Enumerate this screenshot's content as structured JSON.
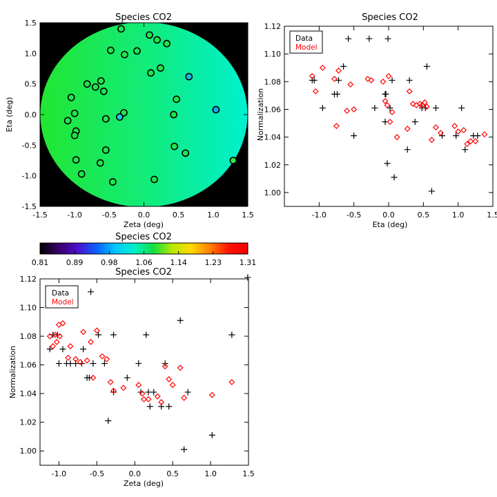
{
  "chart_data": [
    {
      "type": "scatter",
      "id": "map",
      "title": "Species CO2",
      "xlabel": "Zeta (deg)",
      "ylabel": "Eta (deg)",
      "xlim": [
        -1.5,
        1.5
      ],
      "ylim": [
        -1.5,
        1.5
      ],
      "xticks": [
        "-1.5",
        "-1.0",
        "-0.5",
        "0.0",
        "0.5",
        "1.0",
        "1.5"
      ],
      "yticks": [
        "-1.5",
        "-1.0",
        "-0.5",
        "0.0",
        "0.5",
        "1.0",
        "1.5"
      ],
      "background_colors": {
        "outside": "#000000",
        "field_left": "#22e632",
        "field_right": "#00f0d0"
      },
      "points": [
        {
          "x": -0.33,
          "y": 1.4
        },
        {
          "x": 0.08,
          "y": 1.3
        },
        {
          "x": 0.19,
          "y": 1.22
        },
        {
          "x": 0.33,
          "y": 1.16
        },
        {
          "x": -0.48,
          "y": 1.05
        },
        {
          "x": -0.28,
          "y": 0.98
        },
        {
          "x": -0.1,
          "y": 1.04
        },
        {
          "x": -0.62,
          "y": 0.55
        },
        {
          "x": -0.7,
          "y": 0.45
        },
        {
          "x": -0.82,
          "y": 0.5
        },
        {
          "x": -0.58,
          "y": 0.38
        },
        {
          "x": 0.1,
          "y": 0.68
        },
        {
          "x": 0.24,
          "y": 0.76
        },
        {
          "x": 0.65,
          "y": 0.62
        },
        {
          "x": -1.05,
          "y": 0.28
        },
        {
          "x": 0.47,
          "y": 0.25
        },
        {
          "x": -1.0,
          "y": 0.02
        },
        {
          "x": -1.1,
          "y": -0.1
        },
        {
          "x": -0.29,
          "y": 0.03
        },
        {
          "x": -0.35,
          "y": -0.04
        },
        {
          "x": -0.55,
          "y": -0.07
        },
        {
          "x": 0.43,
          "y": 0.0
        },
        {
          "x": 1.04,
          "y": 0.08
        },
        {
          "x": -0.98,
          "y": -0.27
        },
        {
          "x": -1.0,
          "y": -0.34
        },
        {
          "x": 0.44,
          "y": -0.52
        },
        {
          "x": -0.55,
          "y": -0.58
        },
        {
          "x": 0.6,
          "y": -0.63
        },
        {
          "x": -0.98,
          "y": -0.74
        },
        {
          "x": -0.63,
          "y": -0.79
        },
        {
          "x": 1.29,
          "y": -0.75
        },
        {
          "x": -0.9,
          "y": -0.97
        },
        {
          "x": 0.15,
          "y": -1.06
        },
        {
          "x": -0.45,
          "y": -1.1
        }
      ],
      "point_colors": {
        "default": "#1ee64e",
        "x_0.65_y_0.62": "#16b8e8",
        "x_1.04_y_0.08": "#1aa8f0",
        "x_-0.35_y_-0.04": "#18c8e0",
        "x_1.29_y_-0.75": "#30e840"
      }
    },
    {
      "type": "colorbar",
      "id": "colorbar",
      "title": "Species CO2",
      "tick_labels": [
        "0.81",
        "0.89",
        "0.98",
        "1.06",
        "1.14",
        "1.23",
        "1.31"
      ],
      "range": [
        0.81,
        1.31
      ],
      "colormap": [
        "#000000",
        "#3a006a",
        "#4a10d0",
        "#0a60ff",
        "#00c8ff",
        "#00f0c8",
        "#10e040",
        "#b8e800",
        "#ffd800",
        "#ff8000",
        "#ff1000",
        "#f00000"
      ]
    },
    {
      "type": "scatter",
      "id": "eta_plot",
      "title": "Species CO2",
      "xlabel": "Eta (deg)",
      "ylabel": "Normalization",
      "xlim": [
        -1.5,
        1.5
      ],
      "ylim": [
        0.99,
        1.12
      ],
      "xticks": [
        "-1.0",
        "-0.5",
        "0.0",
        "0.5",
        "1.0",
        "1.5"
      ],
      "yticks": [
        "1.00",
        "1.02",
        "1.04",
        "1.06",
        "1.08",
        "1.10",
        "1.12"
      ],
      "legend": {
        "position": "top-left",
        "entries": [
          {
            "label": "Data",
            "color": "#000000"
          },
          {
            "label": "Model",
            "color": "#ff0000"
          }
        ]
      },
      "series": [
        {
          "name": "Data",
          "marker": "plus",
          "color": "#000000",
          "x": [
            -1.1,
            -1.07,
            -0.95,
            -0.78,
            -0.74,
            -0.72,
            -0.65,
            -0.58,
            -0.5,
            -0.28,
            -0.2,
            -0.05,
            -0.05,
            -0.02,
            -0.01,
            0.02,
            0.08,
            0.05,
            0.27,
            0.3,
            0.38,
            0.48,
            0.53,
            0.55,
            0.62,
            0.68,
            0.77,
            0.97,
            1.05,
            1.1,
            1.22,
            1.28,
            -0.04
          ],
          "y": [
            1.081,
            1.081,
            1.061,
            1.071,
            1.071,
            1.081,
            1.091,
            1.111,
            1.041,
            1.111,
            1.061,
            1.051,
            1.071,
            1.021,
            1.111,
            1.061,
            1.011,
            1.081,
            1.031,
            1.081,
            1.051,
            1.061,
            1.061,
            1.091,
            1.001,
            1.061,
            1.041,
            1.041,
            1.061,
            1.031,
            1.041,
            1.041,
            1.071
          ]
        },
        {
          "name": "Model",
          "marker": "diamond",
          "color": "#ff0000",
          "x": [
            -1.1,
            -1.05,
            -0.95,
            -0.78,
            -0.75,
            -0.72,
            -0.6,
            -0.55,
            -0.5,
            -0.3,
            -0.25,
            -0.08,
            -0.05,
            -0.02,
            0.0,
            0.02,
            0.05,
            0.12,
            0.27,
            0.3,
            0.35,
            0.4,
            0.45,
            0.48,
            0.52,
            0.55,
            0.62,
            0.68,
            0.75,
            0.95,
            1.0,
            1.08,
            1.13,
            1.18,
            1.25,
            1.38
          ],
          "y": [
            1.084,
            1.073,
            1.09,
            1.082,
            1.048,
            1.088,
            1.059,
            1.078,
            1.06,
            1.082,
            1.081,
            1.08,
            1.066,
            1.063,
            1.084,
            1.051,
            1.058,
            1.04,
            1.046,
            1.073,
            1.064,
            1.063,
            1.064,
            1.063,
            1.065,
            1.062,
            1.038,
            1.047,
            1.043,
            1.048,
            1.044,
            1.045,
            1.035,
            1.037,
            1.037,
            1.042
          ]
        }
      ]
    },
    {
      "type": "scatter",
      "id": "zeta_plot",
      "title": "Species CO2",
      "xlabel": "Zeta (deg)",
      "ylabel": "Normalization",
      "xlim": [
        -1.25,
        1.5
      ],
      "ylim": [
        0.99,
        1.12
      ],
      "xticks": [
        "-1.0",
        "-0.5",
        "0.0",
        "0.5",
        "1.0",
        "1.5"
      ],
      "yticks": [
        "1.00",
        "1.02",
        "1.04",
        "1.06",
        "1.08",
        "1.10",
        "1.12"
      ],
      "legend": {
        "position": "top-left",
        "entries": [
          {
            "label": "Data",
            "color": "#000000"
          },
          {
            "label": "Model",
            "color": "#ff0000"
          }
        ]
      },
      "series": [
        {
          "name": "Data",
          "marker": "plus",
          "color": "#000000",
          "x": [
            -1.12,
            -1.08,
            -1.05,
            -1.02,
            -1.0,
            -0.95,
            -0.9,
            -0.85,
            -0.78,
            -0.7,
            -0.68,
            -0.63,
            -0.6,
            -0.58,
            -0.55,
            -0.48,
            -0.4,
            -0.35,
            -0.28,
            -0.28,
            -0.1,
            0.05,
            0.08,
            0.15,
            0.18,
            0.2,
            0.25,
            0.35,
            0.4,
            0.45,
            0.6,
            0.65,
            0.7,
            1.02,
            1.28,
            1.49
          ],
          "y": [
            1.071,
            1.081,
            1.111,
            1.081,
            1.061,
            1.071,
            1.061,
            1.061,
            1.061,
            1.061,
            1.071,
            1.051,
            1.051,
            1.111,
            1.061,
            1.081,
            1.061,
            1.021,
            1.081,
            1.041,
            1.051,
            1.061,
            1.041,
            1.081,
            1.041,
            1.031,
            1.041,
            1.031,
            1.061,
            1.031,
            1.091,
            1.001,
            1.041,
            1.011,
            1.081,
            1.121
          ]
        },
        {
          "name": "Model",
          "marker": "diamond",
          "color": "#ff0000",
          "x": [
            -1.12,
            -1.08,
            -1.05,
            -1.03,
            -1.0,
            -0.99,
            -0.95,
            -0.88,
            -0.85,
            -0.78,
            -0.72,
            -0.68,
            -0.63,
            -0.58,
            -0.55,
            -0.5,
            -0.43,
            -0.37,
            -0.32,
            -0.28,
            -0.15,
            0.05,
            0.1,
            0.12,
            0.18,
            0.3,
            0.35,
            0.4,
            0.45,
            0.5,
            0.6,
            0.65,
            1.02,
            1.28
          ],
          "y": [
            1.08,
            1.073,
            1.081,
            1.076,
            1.088,
            1.08,
            1.089,
            1.065,
            1.073,
            1.064,
            1.062,
            1.083,
            1.063,
            1.076,
            1.051,
            1.084,
            1.066,
            1.064,
            1.048,
            1.042,
            1.044,
            1.046,
            1.04,
            1.036,
            1.036,
            1.038,
            1.034,
            1.059,
            1.05,
            1.046,
            1.058,
            1.037,
            1.039,
            1.048
          ]
        }
      ]
    }
  ]
}
